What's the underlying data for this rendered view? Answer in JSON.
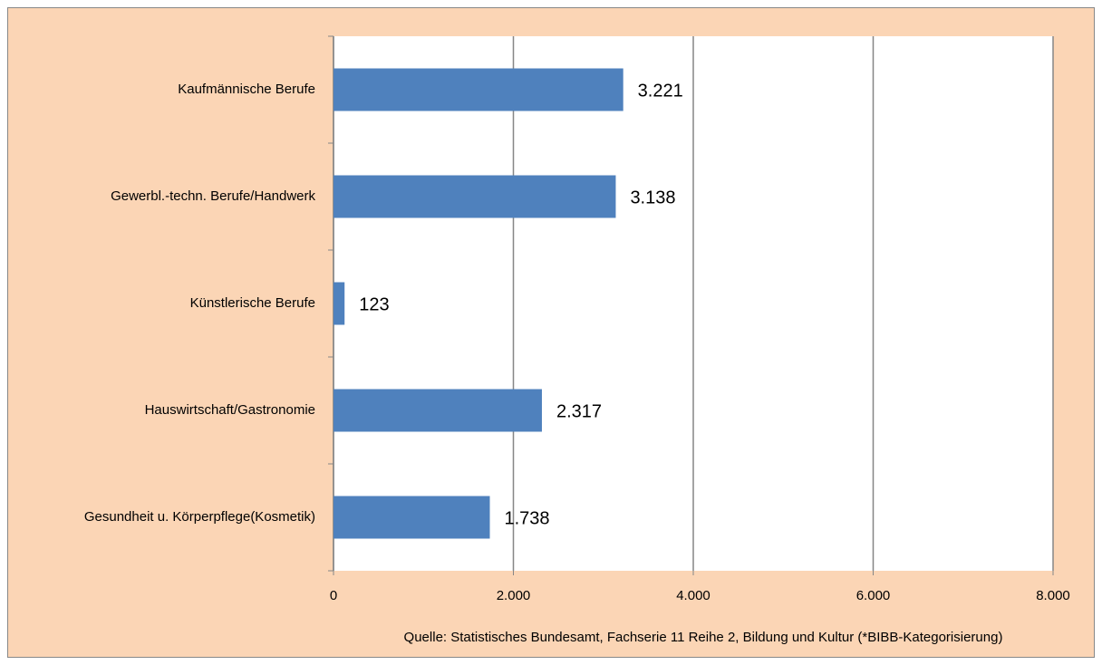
{
  "chart_data": {
    "type": "bar",
    "orientation": "horizontal",
    "categories": [
      "Kaufmännische Berufe",
      "Gewerbl.-techn. Berufe/Handwerk",
      "Künstlerische Berufe",
      "Hauswirtschaft/Gastronomie",
      "Gesundheit u. Körperpflege(Kosmetik)"
    ],
    "values": [
      3221,
      3138,
      123,
      2317,
      1738
    ],
    "value_labels": [
      "3.221",
      "3.138",
      "123",
      "2.317",
      "1.738"
    ],
    "color": "#4f81bd",
    "xlim": [
      0,
      8000
    ],
    "xticks": [
      0,
      {
        "value": 2000,
        "label": "2.000"
      },
      {
        "value": 4000,
        "label": "4.000"
      },
      {
        "value": 6000,
        "label": "6.000"
      },
      {
        "value": 8000,
        "label": "8.000"
      }
    ],
    "grid": true,
    "source": "Quelle: Statistisches Bundesamt, Fachserie 11 Reihe 2, Bildung und Kultur (*BIBB-Kategorisierung)"
  }
}
